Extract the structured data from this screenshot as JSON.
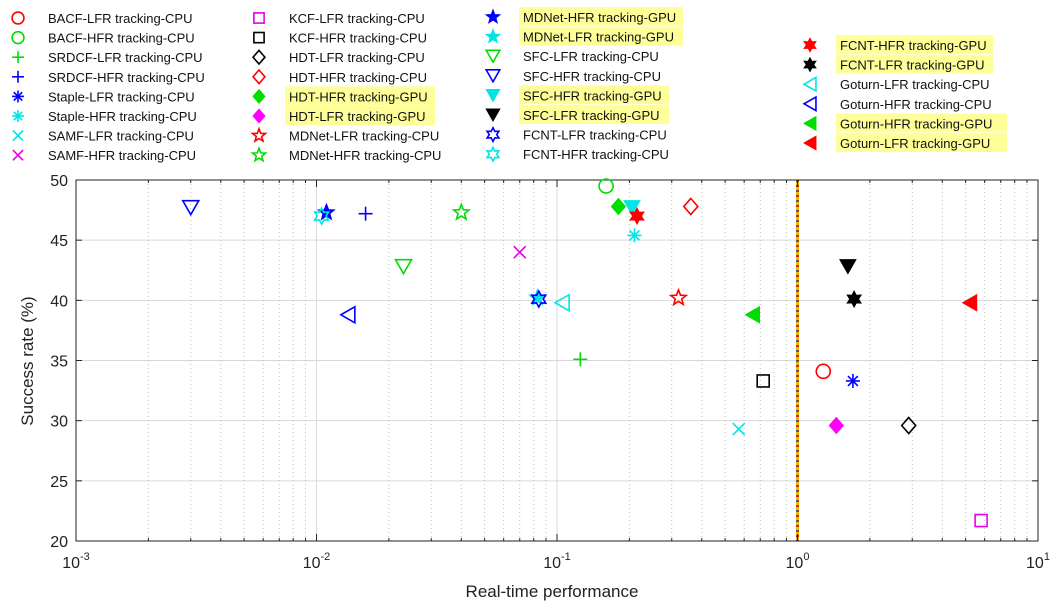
{
  "chart_data": {
    "type": "scatter",
    "xlabel": "Real-time performance",
    "ylabel": "Success rate (%)",
    "xscale": "log",
    "xlim": [
      0.001,
      10
    ],
    "ylim": [
      20,
      50
    ],
    "yticks": [
      20,
      25,
      30,
      35,
      40,
      45,
      50
    ],
    "xticks": [
      {
        "base": "10",
        "exp": "-3"
      },
      {
        "base": "10",
        "exp": "-2"
      },
      {
        "base": "10",
        "exp": "-1"
      },
      {
        "base": "10",
        "exp": "0"
      },
      {
        "base": "10",
        "exp": "1"
      }
    ],
    "grid": true,
    "reference_line_x": 1,
    "legend_placement": "top, outside plot",
    "series": [
      {
        "name": "BACF-LFR tracking-CPU",
        "marker": "circle-open",
        "color": "#ff0000",
        "x": 1.28,
        "y": 34.1,
        "highlight": false
      },
      {
        "name": "BACF-HFR tracking-CPU",
        "marker": "circle-open",
        "color": "#00dd00",
        "x": 0.16,
        "y": 49.5,
        "highlight": false
      },
      {
        "name": "SRDCF-LFR tracking-CPU",
        "marker": "plus",
        "color": "#00dd00",
        "x": 0.125,
        "y": 35.1,
        "highlight": false
      },
      {
        "name": "SRDCF-HFR tracking-CPU",
        "marker": "plus",
        "color": "#0000ff",
        "x": 0.016,
        "y": 47.2,
        "highlight": false
      },
      {
        "name": "Staple-LFR tracking-CPU",
        "marker": "asterisk",
        "color": "#0000ff",
        "x": 1.7,
        "y": 33.3,
        "highlight": false
      },
      {
        "name": "Staple-HFR tracking-CPU",
        "marker": "asterisk",
        "color": "#00e6e6",
        "x": 0.21,
        "y": 45.4,
        "highlight": false
      },
      {
        "name": "SAMF-LFR tracking-CPU",
        "marker": "x",
        "color": "#00e6e6",
        "x": 0.57,
        "y": 29.3,
        "highlight": false
      },
      {
        "name": "SAMF-HFR tracking-CPU",
        "marker": "x",
        "color": "#e600e6",
        "x": 0.07,
        "y": 44.0,
        "highlight": false
      },
      {
        "name": "KCF-LFR tracking-CPU",
        "marker": "square-open",
        "color": "#e600e6",
        "x": 5.8,
        "y": 21.7,
        "highlight": false
      },
      {
        "name": "KCF-HFR tracking-CPU",
        "marker": "square-open",
        "color": "#000000",
        "x": 0.72,
        "y": 33.3,
        "highlight": false
      },
      {
        "name": "HDT-LFR tracking-CPU",
        "marker": "diamond-open",
        "color": "#000000",
        "x": 2.9,
        "y": 29.6,
        "highlight": false
      },
      {
        "name": "HDT-HFR tracking-CPU",
        "marker": "diamond-open",
        "color": "#ff0000",
        "x": 0.36,
        "y": 47.8,
        "highlight": false
      },
      {
        "name": "HDT-HFR tracking-GPU",
        "marker": "diamond-filled",
        "color": "#00dd00",
        "x": 0.18,
        "y": 47.8,
        "highlight": true
      },
      {
        "name": "HDT-LFR tracking-GPU",
        "marker": "diamond-filled",
        "color": "#ff00ff",
        "x": 1.45,
        "y": 29.6,
        "highlight": true
      },
      {
        "name": "MDNet-LFR tracking-CPU",
        "marker": "star-open",
        "color": "#ff0000",
        "x": 0.32,
        "y": 40.2,
        "highlight": false
      },
      {
        "name": "MDNet-HFR tracking-CPU",
        "marker": "star-open",
        "color": "#00dd00",
        "x": 0.04,
        "y": 47.3,
        "highlight": false
      },
      {
        "name": "MDNet-HFR tracking-GPU",
        "marker": "star-filled",
        "color": "#0000ff",
        "x": 0.011,
        "y": 47.3,
        "highlight": true
      },
      {
        "name": "MDNet-LFR tracking-GPU",
        "marker": "star-filled",
        "color": "#00e6e6",
        "x": 0.083,
        "y": 40.2,
        "highlight": true
      },
      {
        "name": "SFC-LFR tracking-CPU",
        "marker": "tri-down-open",
        "color": "#00dd00",
        "x": 0.023,
        "y": 42.8,
        "highlight": false
      },
      {
        "name": "SFC-HFR tracking-CPU",
        "marker": "tri-down-open",
        "color": "#0000ff",
        "x": 0.003,
        "y": 47.7,
        "highlight": false
      },
      {
        "name": "SFC-HFR tracking-GPU",
        "marker": "tri-down-filled",
        "color": "#00e6e6",
        "x": 0.205,
        "y": 47.7,
        "highlight": true
      },
      {
        "name": "SFC-LFR tracking-GPU",
        "marker": "tri-down-filled",
        "color": "#000000",
        "x": 1.62,
        "y": 42.8,
        "highlight": true
      },
      {
        "name": "FCNT-LFR tracking-CPU",
        "marker": "hexstar-open",
        "color": "#0000ff",
        "x": 0.084,
        "y": 40.1,
        "highlight": false
      },
      {
        "name": "FCNT-HFR tracking-CPU",
        "marker": "hexstar-open",
        "color": "#00e6e6",
        "x": 0.0105,
        "y": 47.0,
        "highlight": false
      },
      {
        "name": "FCNT-HFR tracking-GPU",
        "marker": "hexstar-filled",
        "color": "#ff0000",
        "x": 0.215,
        "y": 47.0,
        "highlight": true
      },
      {
        "name": "FCNT-LFR tracking-GPU",
        "marker": "hexstar-filled",
        "color": "#000000",
        "x": 1.72,
        "y": 40.1,
        "highlight": true
      },
      {
        "name": "Goturn-LFR tracking-CPU",
        "marker": "tri-left-open",
        "color": "#00e6e6",
        "x": 0.105,
        "y": 39.8,
        "highlight": false
      },
      {
        "name": "Goturn-HFR tracking-CPU",
        "marker": "tri-left-open",
        "color": "#0000ff",
        "x": 0.0135,
        "y": 38.8,
        "highlight": false
      },
      {
        "name": "Goturn-HFR tracking-GPU",
        "marker": "tri-left-filled",
        "color": "#00dd00",
        "x": 0.65,
        "y": 38.8,
        "highlight": true
      },
      {
        "name": "Goturn-LFR tracking-GPU",
        "marker": "tri-left-filled",
        "color": "#ff0000",
        "x": 5.2,
        "y": 39.8,
        "highlight": true
      }
    ],
    "colors": {
      "highlight_bg": "#ffff99",
      "grid": "#d9d9d9",
      "axis": "#222222"
    }
  }
}
